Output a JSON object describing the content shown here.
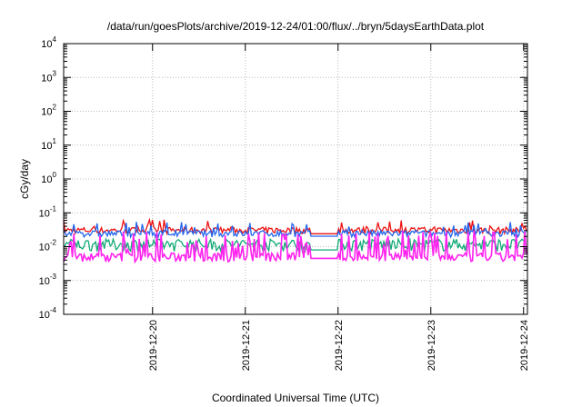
{
  "chart_data": {
    "type": "line",
    "title": "/data/run/goesPlots/archive/2019-12-24/01:00/flux/../bryn/5daysEarthData.plot",
    "xlabel": "Coordinated Universal Time (UTC)",
    "ylabel": "cGy/day",
    "yscale": "log",
    "ylim": [
      0.0001,
      10000
    ],
    "xlim": [
      "2019-12-19 01:00",
      "2019-12-24 01:00"
    ],
    "grid": true,
    "y_ticks": [
      {
        "base": "10",
        "exp": "-4"
      },
      {
        "base": "10",
        "exp": "-3"
      },
      {
        "base": "10",
        "exp": "-2"
      },
      {
        "base": "10",
        "exp": "-1"
      },
      {
        "base": "10",
        "exp": "0"
      },
      {
        "base": "10",
        "exp": "1"
      },
      {
        "base": "10",
        "exp": "2"
      },
      {
        "base": "10",
        "exp": "3"
      },
      {
        "base": "10",
        "exp": "4"
      }
    ],
    "x_ticks": [
      "2019-12-20",
      "2019-12-21",
      "2019-12-22",
      "2019-12-23",
      "2019-12-24"
    ],
    "gap": [
      "2019-12-21 17:00",
      "2019-12-22 00:00"
    ],
    "series": [
      {
        "color": "#ee1111",
        "base": 0.03,
        "spike_max": 0.065
      },
      {
        "color": "#11aa77",
        "base": 0.012,
        "low_in_gap": 0.008
      },
      {
        "color": "#2266ee",
        "base": 0.024,
        "spike_max": 0.055
      },
      {
        "color": "#ff22ee",
        "base": 0.005,
        "spike_max": 0.03
      }
    ]
  }
}
